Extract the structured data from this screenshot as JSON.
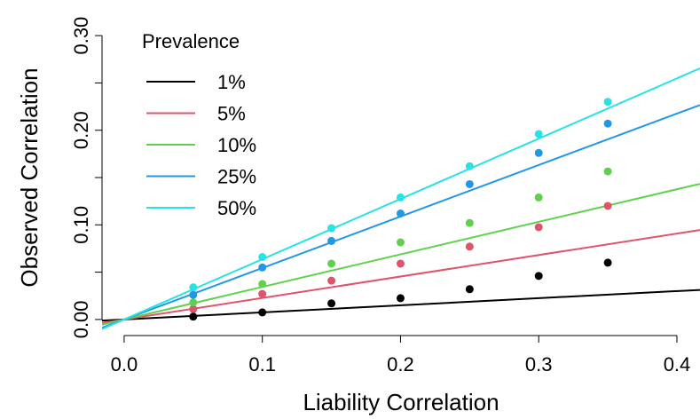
{
  "chart_data": {
    "type": "scatter",
    "x_label": "Liability Correlation",
    "y_label": "Observed Correlation",
    "legend_title": "Prevalence",
    "legend": "top-left",
    "x": [
      0.05,
      0.1,
      0.15,
      0.2,
      0.25,
      0.3,
      0.35
    ],
    "series": [
      {
        "name": "1%",
        "color": "#000000",
        "values": [
          0.003,
          0.0075,
          0.017,
          0.0225,
          0.032,
          0.046,
          0.06
        ],
        "fit_slope": 0.075
      },
      {
        "name": "5%",
        "color": "#DF536B",
        "values": [
          0.011,
          0.027,
          0.041,
          0.059,
          0.077,
          0.0975,
          0.12
        ],
        "fit_slope": 0.227
      },
      {
        "name": "10%",
        "color": "#61D04F",
        "values": [
          0.018,
          0.0375,
          0.059,
          0.0815,
          0.102,
          0.129,
          0.1565
        ],
        "fit_slope": 0.344
      },
      {
        "name": "25%",
        "color": "#2297E6",
        "values": [
          0.026,
          0.055,
          0.083,
          0.112,
          0.143,
          0.176,
          0.207
        ],
        "fit_slope": 0.544
      },
      {
        "name": "50%",
        "color": "#28E2E5",
        "values": [
          0.034,
          0.066,
          0.0965,
          0.129,
          0.162,
          0.196,
          0.23
        ],
        "fit_slope": 0.637
      }
    ],
    "xlim": [
      -0.016,
      0.4167
    ],
    "ylim": [
      -0.017,
      0.317
    ],
    "xticks": [
      {
        "value": 0,
        "label": "0.0"
      },
      {
        "value": 0.1,
        "label": "0.1"
      },
      {
        "value": 0.2,
        "label": "0.2"
      },
      {
        "value": 0.3,
        "label": "0.3"
      },
      {
        "value": 0.4,
        "label": "0.4"
      }
    ],
    "yticks": [
      {
        "value": 0,
        "label": "0.00"
      },
      {
        "value": 0.1,
        "label": "0.10"
      },
      {
        "value": 0.2,
        "label": "0.20"
      },
      {
        "value": 0.3,
        "label": "0.30"
      }
    ],
    "yminor": [
      0.05,
      0.15,
      0.25
    ]
  }
}
